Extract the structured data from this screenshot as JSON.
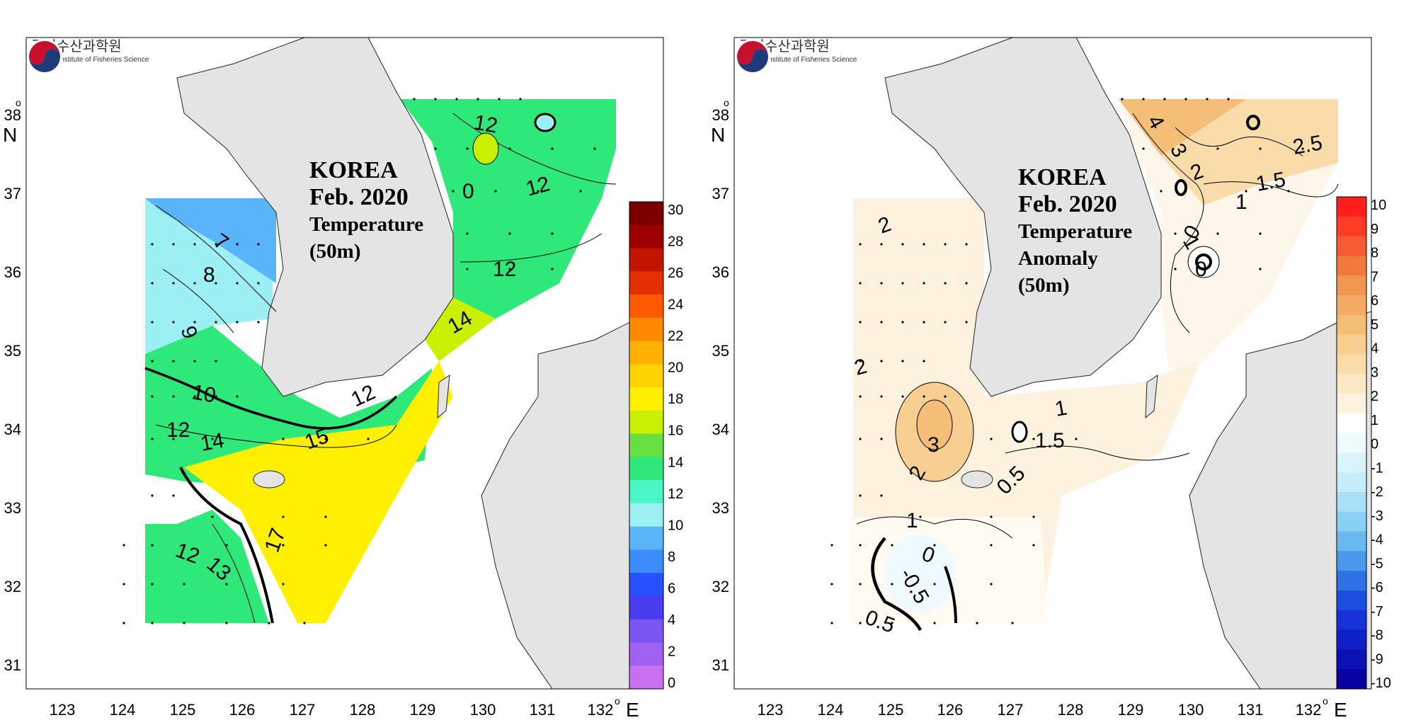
{
  "panels": [
    {
      "title": [
        "KOREA",
        "Feb. 2020",
        "Temperature",
        "(50m)"
      ],
      "legend": {
        "labels": [
          "30",
          "28",
          "26",
          "24",
          "22",
          "20",
          "18",
          "16",
          "14",
          "12",
          "10",
          "8",
          "6",
          "4",
          "2",
          "0"
        ],
        "colors_top_to_bottom": [
          "#7a0000",
          "#9e0000",
          "#c21500",
          "#e43000",
          "#ff5a00",
          "#ff8a00",
          "#ffb000",
          "#ffd200",
          "#fff000",
          "#c8f000",
          "#66e040",
          "#2ee87a",
          "#4af5c8",
          "#9cf0f4",
          "#5ab4fa",
          "#3c8cff",
          "#2850ff",
          "#4a3cf0",
          "#7a55f0",
          "#a060f0",
          "#c870f0"
        ]
      },
      "contour_labels": [
        "12",
        "0",
        "12",
        "12",
        "7",
        "8",
        "9",
        "14",
        "10",
        "12",
        "15",
        "12",
        "14",
        "12",
        "13",
        "17"
      ]
    },
    {
      "title": [
        "KOREA",
        "Feb. 2020",
        "Temperature",
        "Anomaly",
        "(50m)"
      ],
      "legend": {
        "labels": [
          "10",
          "9",
          "8",
          "7",
          "6",
          "5",
          "4",
          "3",
          "2",
          "1",
          "0",
          "-1",
          "-2",
          "-3",
          "-4",
          "-5",
          "-6",
          "-7",
          "-8",
          "-9",
          "-10"
        ],
        "colors_top_to_bottom": [
          "#ff1e1e",
          "#ff3c28",
          "#f55a32",
          "#f07a3c",
          "#f09650",
          "#f5aa64",
          "#f5be78",
          "#f8cf90",
          "#fadcaa",
          "#fce8c4",
          "#fdf2de",
          "#ffffff",
          "#eefafd",
          "#daf4fb",
          "#c4ecfa",
          "#a8e0f8",
          "#8ad0f4",
          "#6ab8f0",
          "#4a98ec",
          "#2e72e6",
          "#1c4ee0",
          "#1432d6",
          "#1020c8",
          "#0c10b4",
          "#0800a0"
        ]
      },
      "contour_labels": [
        "4",
        "3",
        "2.5",
        "2",
        "1.5",
        "1",
        "0",
        "1",
        "0",
        "2",
        "2",
        "3",
        "2",
        "1",
        "1.5",
        "0.5",
        "1",
        "0",
        "-0.5",
        "0.5"
      ]
    }
  ],
  "axes": {
    "lon_ticks": [
      "123",
      "124",
      "125",
      "126",
      "127",
      "128",
      "129",
      "130",
      "131",
      "132"
    ],
    "lat_ticks": [
      "38",
      "37",
      "36",
      "35",
      "34",
      "33",
      "32",
      "31"
    ],
    "lon_unit": "E",
    "lat_unit": "N",
    "degree": "o"
  },
  "logo": {
    "korean": "국립수산과학원",
    "english": "National Institute of Fisheries Science"
  },
  "colors": {
    "land": "#e4e4e4",
    "coast": "#222222",
    "border": "#000000"
  }
}
